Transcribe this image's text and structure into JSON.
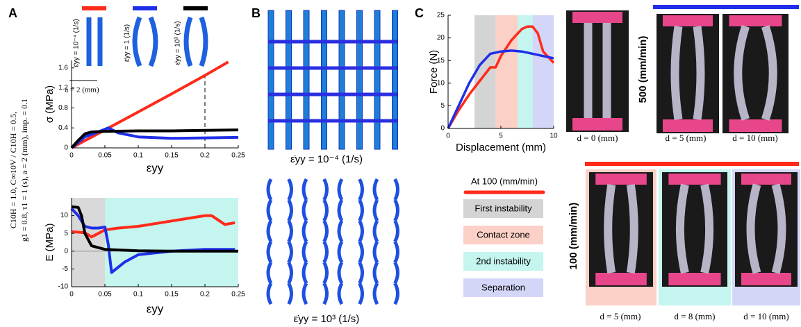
{
  "chart_data": [
    {
      "type": "line",
      "xlabel": "εyy",
      "ylabel": "σ (MPa)",
      "xlim": [
        0,
        0.25
      ],
      "xticks": [
        0,
        0.05,
        0.1,
        0.15,
        0.2,
        0.25
      ],
      "ylim": [
        0,
        1.75
      ],
      "yticks": [
        0,
        0.4,
        0.8,
        1.2,
        1.6
      ],
      "reference_x": 0.2,
      "series": [
        {
          "name": "ε̇yy = 10⁻⁴ (1/s)",
          "color": "#ff2a1a",
          "x": [
            0,
            0.05,
            0.1,
            0.15,
            0.2,
            0.235
          ],
          "values": [
            0,
            0.36,
            0.72,
            1.08,
            1.45,
            1.72
          ]
        },
        {
          "name": "ε̇yy = 1 (1/s)",
          "color": "#1f2ee8",
          "x": [
            0,
            0.02,
            0.04,
            0.055,
            0.07,
            0.1,
            0.15,
            0.2,
            0.25
          ],
          "values": [
            0,
            0.22,
            0.32,
            0.4,
            0.3,
            0.22,
            0.19,
            0.2,
            0.21
          ]
        },
        {
          "name": "ε̇yy = 10³ (1/s)",
          "color": "#000000",
          "x": [
            0,
            0.01,
            0.02,
            0.03,
            0.05,
            0.1,
            0.15,
            0.2,
            0.25
          ],
          "values": [
            0,
            0.15,
            0.28,
            0.32,
            0.33,
            0.34,
            0.34,
            0.35,
            0.36
          ]
        }
      ]
    },
    {
      "type": "line",
      "xlabel": "εyy",
      "ylabel": "E (MPa)",
      "xlim": [
        0,
        0.25
      ],
      "xticks": [
        0,
        0.05,
        0.1,
        0.15,
        0.2,
        0.25
      ],
      "ylim": [
        -10,
        15
      ],
      "yticks": [
        -10,
        -5,
        0,
        5,
        10
      ],
      "zero_line": true,
      "regions": [
        {
          "color": "#d9d9d9",
          "range": [
            0,
            0.05
          ]
        },
        {
          "color": "#c4f5ee",
          "range": [
            0.05,
            0.25
          ]
        }
      ],
      "series": [
        {
          "color": "#ff2a1a",
          "x": [
            0,
            0.02,
            0.03,
            0.05,
            0.07,
            0.1,
            0.15,
            0.2,
            0.21,
            0.23,
            0.245
          ],
          "values": [
            5.5,
            5.2,
            4,
            6,
            6.5,
            7,
            8.5,
            10,
            10,
            7.5,
            8
          ]
        },
        {
          "color": "#1f2ee8",
          "x": [
            0,
            0.01,
            0.02,
            0.03,
            0.04,
            0.05,
            0.055,
            0.06,
            0.08,
            0.1,
            0.15,
            0.2,
            0.245
          ],
          "values": [
            12,
            10,
            7,
            6.5,
            6.5,
            6.8,
            2,
            -6,
            -3,
            -1,
            0,
            0.5,
            0.5
          ]
        },
        {
          "color": "#000000",
          "x": [
            0,
            0.01,
            0.015,
            0.02,
            0.03,
            0.05,
            0.1,
            0.15,
            0.25
          ],
          "values": [
            12.5,
            12.3,
            10,
            5,
            1.5,
            0.5,
            0.1,
            0,
            0
          ]
        }
      ]
    },
    {
      "type": "line",
      "xlabel": "Displacement (mm)",
      "ylabel": "Force (N)",
      "xlim": [
        0,
        10
      ],
      "xticks": [
        0,
        5,
        10
      ],
      "ylim": [
        0,
        25
      ],
      "yticks": [
        0,
        5,
        10,
        15,
        20,
        25
      ],
      "regions": [
        {
          "name": "First instability",
          "color": "#d4d4d4",
          "range": [
            2.5,
            4.5
          ]
        },
        {
          "name": "Contact zone",
          "color": "#fbd0c6",
          "range": [
            4.5,
            6.6
          ]
        },
        {
          "name": "2nd instability",
          "color": "#c4f5ee",
          "range": [
            6.6,
            8
          ]
        },
        {
          "name": "Separation",
          "color": "#d4d6f7",
          "range": [
            8,
            10
          ]
        }
      ],
      "series": [
        {
          "name": "At 100 (mm/min)",
          "color": "#ff2a1a",
          "x": [
            0,
            1,
            2,
            3,
            4,
            4.5,
            5,
            6,
            7,
            7.5,
            8,
            8.5,
            9,
            10
          ],
          "values": [
            0,
            4,
            7.5,
            10.5,
            13.5,
            13.5,
            16,
            19.5,
            22,
            22.5,
            22.5,
            21,
            17,
            14.5
          ]
        },
        {
          "color": "#1f2ee8",
          "x": [
            0,
            1,
            2,
            3,
            4,
            5,
            6,
            7,
            8,
            9,
            10
          ],
          "values": [
            0,
            5,
            10,
            14,
            16.5,
            17,
            17.2,
            17,
            16.5,
            16,
            15.5
          ]
        }
      ]
    }
  ],
  "figure": {
    "panel_labels": [
      "A",
      "B",
      "C"
    ],
    "params": [
      "C10H = 1.0, C∞10V / C10H = 0.5,",
      "g1 = 0.8, τ1 = 1 (s), a = 2 (mm), imp. = 0.1"
    ],
    "inset_dimension": "a = 2 (mm)",
    "lattice_labels": [
      "ε̇yy = 10⁻⁴ (1/s)",
      "ε̇yy = 10³ (1/s)"
    ],
    "rate_labels": [
      "500 (mm/min)",
      "100 (mm/min)"
    ],
    "photo_captions": [
      "d = 0 (mm)",
      "d = 5 (mm)",
      "d = 10 (mm)",
      "d = 5 (mm)",
      "d = 8 (mm)",
      "d = 10 (mm)"
    ]
  }
}
